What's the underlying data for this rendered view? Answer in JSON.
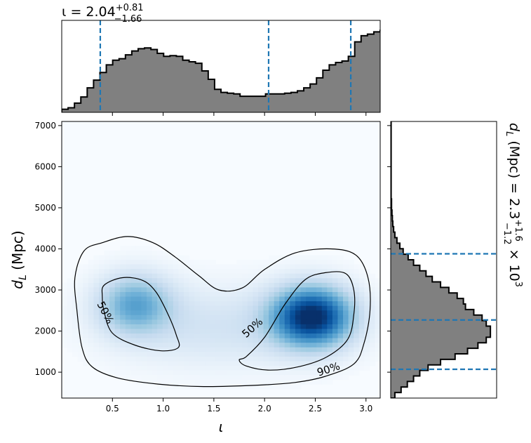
{
  "chart_data": [
    {
      "panel": "joint",
      "type": "heatmap",
      "xlabel": "ι",
      "ylabel_base": "d",
      "ylabel_sub": "L",
      "ylabel_unit": " (Mpc)",
      "xlim": [
        0.0,
        3.14
      ],
      "ylim": [
        370,
        7100
      ],
      "xticks": [
        0.5,
        1.0,
        1.5,
        2.0,
        2.5,
        3.0
      ],
      "xticklabels": [
        "0.5",
        "1.0",
        "1.5",
        "2.0",
        "2.5",
        "3.0"
      ],
      "yticks": [
        1000,
        2000,
        3000,
        4000,
        5000,
        6000,
        7000
      ],
      "yticklabels": [
        "1000",
        "2000",
        "3000",
        "4000",
        "5000",
        "6000",
        "7000"
      ],
      "colormap": "Blues",
      "density_peaks": [
        {
          "x": 2.47,
          "y": 2350,
          "weight": 1.0
        },
        {
          "x": 0.72,
          "y": 2650,
          "weight": 0.5
        }
      ],
      "contours": [
        {
          "level": "50%",
          "label": "50%",
          "label_x": 0.43,
          "label_y": 2450
        },
        {
          "level": "50%",
          "label": "50%",
          "label_x": 1.88,
          "label_y": 2080
        },
        {
          "level": "90%",
          "label": "90%",
          "label_x": 2.63,
          "label_y": 1070
        }
      ]
    },
    {
      "panel": "top-marginal",
      "type": "bar",
      "title_base": "ι = 2.04",
      "title_sup": "+0.81",
      "title_sub": "−1.66",
      "median": 2.04,
      "lower": 0.38,
      "upper": 2.85,
      "bin_width": 0.0628,
      "x_start": 0.0,
      "values": [
        0.04,
        0.06,
        0.12,
        0.2,
        0.32,
        0.42,
        0.52,
        0.62,
        0.68,
        0.7,
        0.75,
        0.8,
        0.83,
        0.84,
        0.82,
        0.77,
        0.73,
        0.74,
        0.73,
        0.68,
        0.66,
        0.64,
        0.54,
        0.43,
        0.3,
        0.26,
        0.25,
        0.24,
        0.21,
        0.21,
        0.21,
        0.21,
        0.24,
        0.24,
        0.24,
        0.25,
        0.26,
        0.28,
        0.32,
        0.37,
        0.45,
        0.55,
        0.62,
        0.65,
        0.67,
        0.73,
        0.92,
        1.0,
        1.02,
        1.05,
        1.07,
        1.1,
        1.12,
        1.15,
        1.17,
        1.14,
        1.06,
        0.97,
        0.9,
        0.8,
        0.67,
        0.52,
        0.37,
        0.22,
        0.06,
        0.03
      ],
      "color": "#808080",
      "quantile_color": "#1f77b4"
    },
    {
      "panel": "right-marginal",
      "type": "bar",
      "orientation": "horizontal",
      "label_base": "d",
      "label_sub": "L",
      "label_mid": " (Mpc) = 2.3",
      "label_sup": "+1.6",
      "label_sub2": "−1.2",
      "label_tail": " × 10",
      "label_exp": "3",
      "median": 2270,
      "lower": 1070,
      "upper": 3880,
      "y_start": 370,
      "bin_height": 134.6,
      "values": [
        0.1,
        0.25,
        0.4,
        0.55,
        0.7,
        0.9,
        1.2,
        1.55,
        1.85,
        2.1,
        2.3,
        2.4,
        2.4,
        2.3,
        2.2,
        2.0,
        1.8,
        1.75,
        1.6,
        1.4,
        1.2,
        1.0,
        0.85,
        0.7,
        0.55,
        0.42,
        0.3,
        0.22,
        0.15,
        0.1,
        0.07,
        0.05,
        0.04,
        0.03,
        0.02,
        0.02,
        0.01,
        0.01,
        0.01,
        0.01,
        0.01,
        0.01,
        0.01,
        0.01,
        0.01,
        0.01,
        0.01,
        0.01,
        0.01,
        0.01
      ],
      "color": "#808080",
      "quantile_color": "#1f77b4"
    }
  ]
}
